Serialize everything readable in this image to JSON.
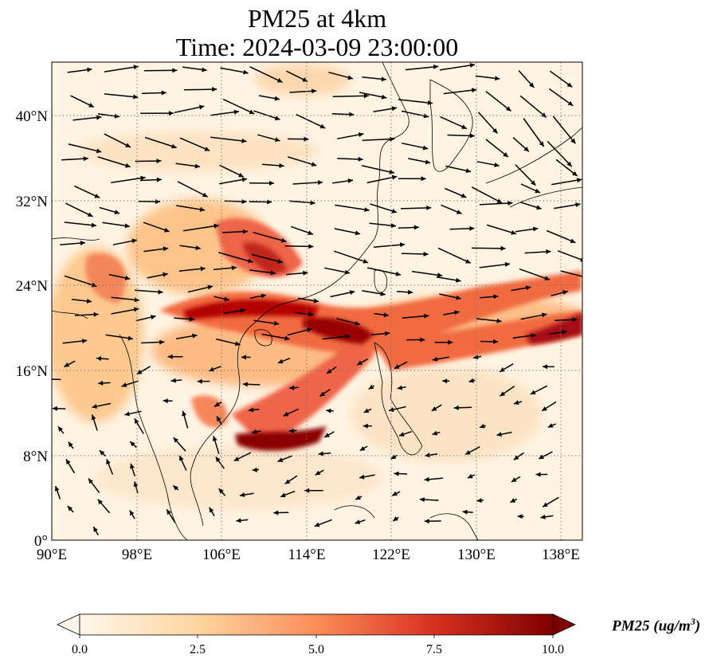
{
  "title": {
    "line1": "PM25 at 4km",
    "line2": "Time: 2024-03-09 23:00:00"
  },
  "map": {
    "variable": "PM25",
    "level": "4km",
    "lon_ticks": [
      "90°E",
      "98°E",
      "106°E",
      "114°E",
      "122°E",
      "130°E",
      "138°E"
    ],
    "lat_ticks": [
      "40°N",
      "32°N",
      "24°N",
      "16°N",
      "8°N",
      "0°"
    ],
    "lon_range": [
      90,
      140
    ],
    "lat_range": [
      0,
      45
    ],
    "gridlines": "dotted",
    "wind_vectors": "shown",
    "coastlines": "shown",
    "plume_color": "#8b0000",
    "background_color": "#fff3e2"
  },
  "colorbar": {
    "ticks": [
      "0.0",
      "2.5",
      "5.0",
      "7.5",
      "10.0"
    ],
    "range": [
      0,
      10
    ],
    "extend": "both",
    "colormap": "OrRd",
    "label_text": "PM25 (ug/m",
    "label_sup": "3",
    "label_close": ")"
  }
}
